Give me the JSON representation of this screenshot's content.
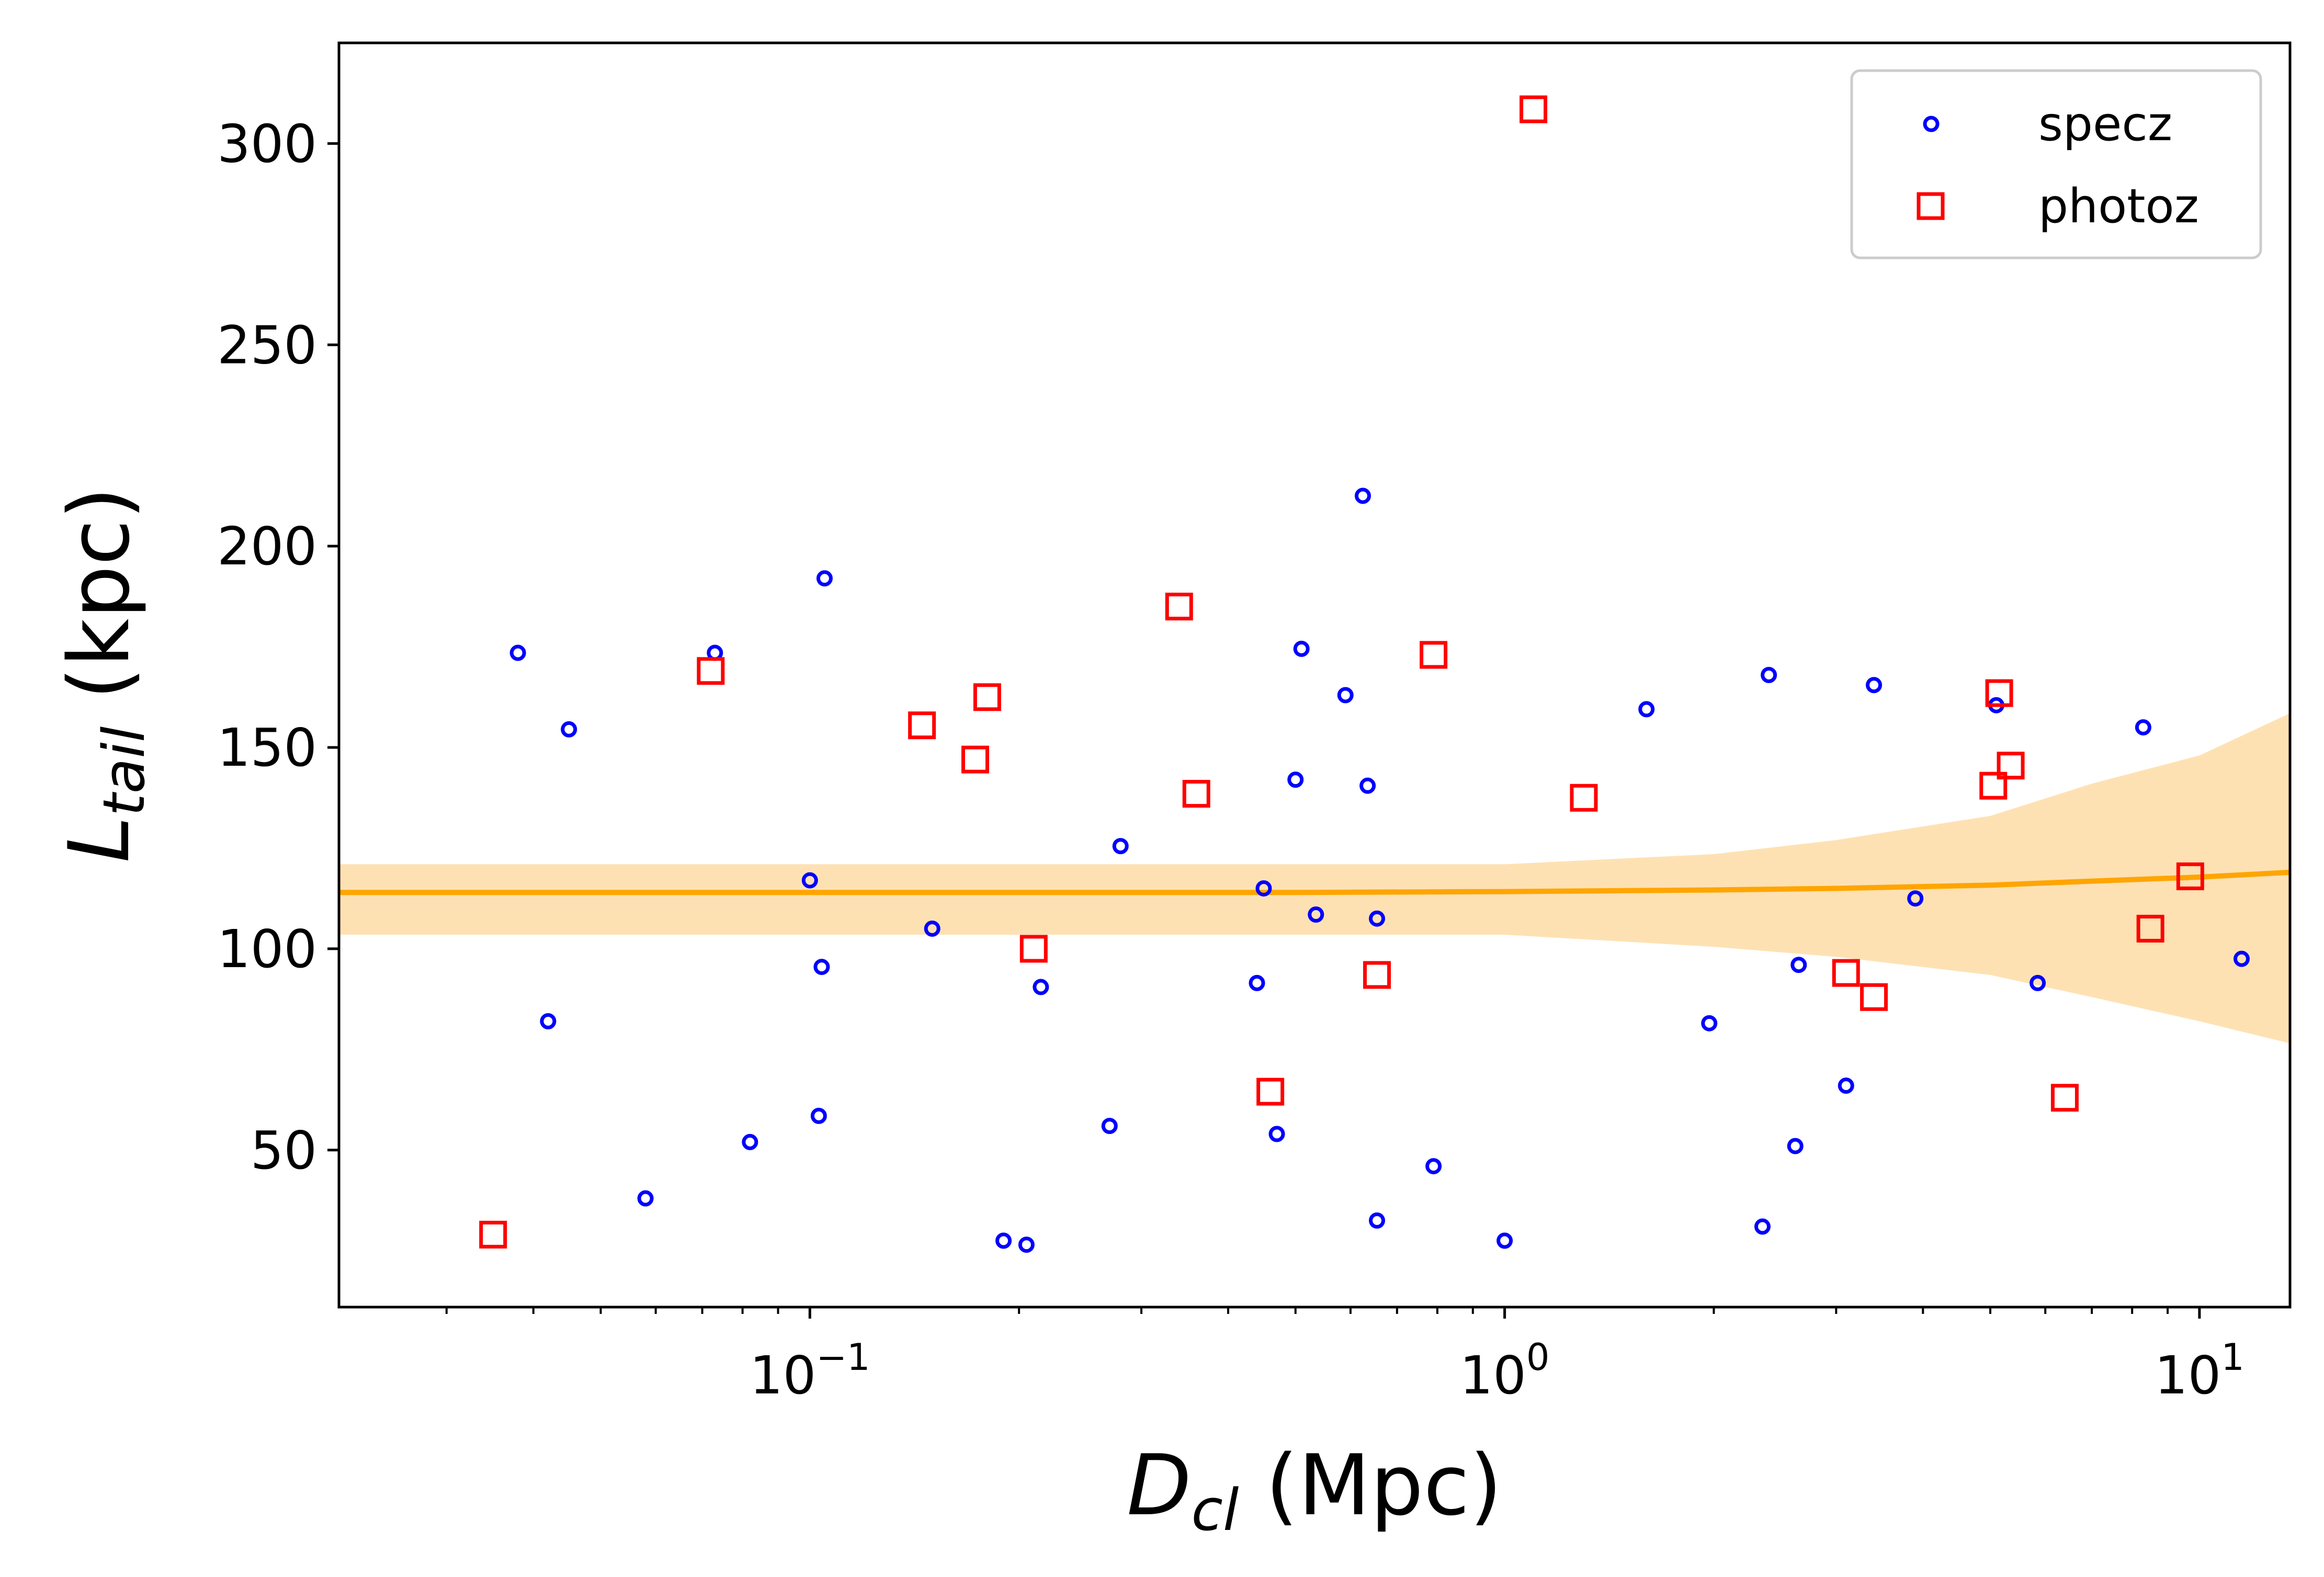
{
  "chart_data": {
    "type": "scatter",
    "xscale": "log",
    "xlim": [
      0.021,
      13.5
    ],
    "ylim": [
      11,
      325
    ],
    "xlabel": "D_cl (Mpc)",
    "xlabel_main": "D",
    "xlabel_sub": "cl",
    "xlabel_unit": " (Mpc)",
    "ylabel": "L_tail (kpc)",
    "ylabel_main": "L",
    "ylabel_sub": "tail",
    "ylabel_unit": " (kpc)",
    "xticks": [
      {
        "value": 0.1,
        "base": "10",
        "exp": "−1"
      },
      {
        "value": 1,
        "base": "10",
        "exp": "0"
      },
      {
        "value": 10,
        "base": "10",
        "exp": "1"
      }
    ],
    "yticks": [
      {
        "value": 50,
        "label": "50"
      },
      {
        "value": 100,
        "label": "100"
      },
      {
        "value": 150,
        "label": "150"
      },
      {
        "value": 200,
        "label": "200"
      },
      {
        "value": 250,
        "label": "250"
      },
      {
        "value": 300,
        "label": "300"
      }
    ],
    "legend_position": "top-right",
    "series": [
      {
        "name": "specz",
        "marker": "circle",
        "color": "#0000ff",
        "x": [
          0.038,
          0.045,
          0.042,
          0.058,
          0.073,
          0.082,
          0.1,
          0.105,
          0.104,
          0.103,
          0.15,
          0.19,
          0.205,
          0.215,
          0.27,
          0.28,
          0.45,
          0.44,
          0.47,
          0.51,
          0.5,
          0.535,
          0.59,
          0.625,
          0.635,
          0.655,
          0.655,
          0.79,
          1.0,
          1.6,
          1.97,
          2.35,
          2.4,
          2.62,
          2.65,
          3.1,
          3.4,
          3.9,
          5.1,
          5.85,
          8.3,
          11.5
        ],
        "y": [
          173.5,
          154.5,
          82,
          38,
          173.5,
          52,
          117,
          192,
          95.5,
          58.5,
          105,
          27.5,
          26.5,
          90.5,
          56,
          125.5,
          115,
          91.5,
          54,
          174.5,
          142,
          108.5,
          163,
          212.5,
          140.5,
          32.5,
          107.5,
          46,
          27.5,
          159.5,
          81.5,
          31,
          168,
          51,
          96,
          66,
          165.5,
          112.5,
          160.5,
          91.5,
          155,
          97.5
        ]
      },
      {
        "name": "photoz",
        "marker": "square",
        "color": "#ff0000",
        "x": [
          0.035,
          0.072,
          0.145,
          0.173,
          0.18,
          0.21,
          0.34,
          0.36,
          0.46,
          0.655,
          0.79,
          1.1,
          1.3,
          3.1,
          3.4,
          5.05,
          5.15,
          5.35,
          6.4,
          8.5,
          9.7
        ],
        "y": [
          29,
          169,
          155.5,
          147,
          162.5,
          100,
          185,
          138.5,
          64.5,
          93.5,
          173,
          308.5,
          137.5,
          94,
          88,
          140.5,
          163.5,
          145.5,
          63,
          105,
          118
        ]
      }
    ],
    "fit": {
      "name": "fit",
      "color": "#ffa500",
      "band_color": "#fee1b3",
      "x": [
        0.021,
        0.05,
        0.1,
        0.2,
        0.5,
        1,
        2,
        3,
        5,
        7,
        10,
        13.5
      ],
      "y": [
        114,
        114,
        114,
        114,
        114,
        114.2,
        114.6,
        115,
        115.8,
        116.8,
        117.8,
        119
      ],
      "lower": [
        103.5,
        103.5,
        103.5,
        103.5,
        103.5,
        103.5,
        100.5,
        98,
        93.5,
        88,
        82,
        76.5
      ],
      "upper": [
        121,
        121,
        121,
        121,
        121,
        121,
        123.5,
        127,
        133,
        141,
        148,
        158.5
      ]
    }
  }
}
